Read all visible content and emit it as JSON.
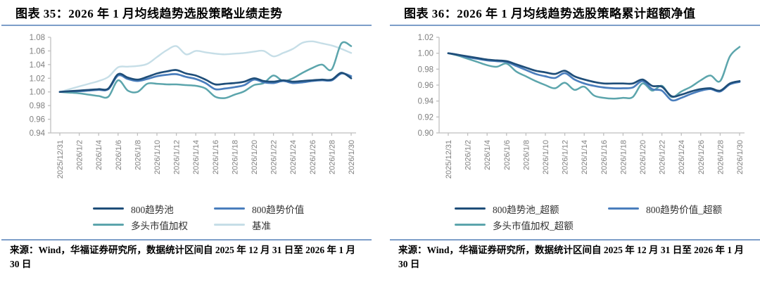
{
  "styles": {
    "rule_color": "#7D9EC9",
    "axis_color": "#BFBFBF",
    "tick_label_color": "#7F7F7F"
  },
  "panels": [
    {
      "title": "图表 35：2026 年 1 月均线趋势选股策略业绩走势",
      "source": "来源：Wind，华福证券研究所，数据统计区间自 2025 年 12 月 31 日至 2026 年 1 月 30 日"
    },
    {
      "title": "图表 36：2026 年 1 月均线趋势选股策略累计超额净值",
      "source": "来源：Wind，华福证券研究所，数据统计区间自 2025 年 12 月 31 日至 2026 年 1 月 30 日"
    }
  ],
  "chart_data": [
    {
      "type": "line",
      "title": "2026年1月均线趋势选股策略业绩走势",
      "x_tick_labels": [
        "2025/12/31",
        "2026/1/2",
        "2026/1/4",
        "2026/1/6",
        "2026/1/8",
        "2026/1/10",
        "2026/1/12",
        "2026/1/14",
        "2026/1/16",
        "2026/1/18",
        "2026/1/20",
        "2026/1/22",
        "2026/1/24",
        "2026/1/26",
        "2026/1/28",
        "2026/1/30"
      ],
      "ylim": [
        0.94,
        1.08
      ],
      "y_ticks": [
        0.94,
        0.96,
        0.98,
        1.0,
        1.02,
        1.04,
        1.06,
        1.08
      ],
      "grid": false,
      "legend_position": "bottom",
      "series": [
        {
          "name": "800趋势池",
          "color": "#1F4E79",
          "width": 2.7,
          "values": [
            1.0,
            1.001,
            1.002,
            1.003,
            1.004,
            1.005,
            1.026,
            1.021,
            1.018,
            1.022,
            1.027,
            1.03,
            1.032,
            1.027,
            1.024,
            1.018,
            1.011,
            1.012,
            1.013,
            1.015,
            1.02,
            1.016,
            1.015,
            1.017,
            1.015,
            1.016,
            1.017,
            1.018,
            1.018,
            1.028,
            1.02
          ]
        },
        {
          "name": "800趋势价值",
          "color": "#4A7EBD",
          "width": 2.7,
          "values": [
            1.0,
            1.001,
            1.001,
            1.002,
            1.003,
            1.004,
            1.024,
            1.019,
            1.016,
            1.019,
            1.023,
            1.025,
            1.026,
            1.022,
            1.019,
            1.013,
            1.004,
            1.005,
            1.007,
            1.01,
            1.018,
            1.014,
            1.013,
            1.016,
            1.013,
            1.014,
            1.016,
            1.017,
            1.017,
            1.027,
            1.023
          ]
        },
        {
          "name": "多头市值加权",
          "color": "#5CA5AC",
          "width": 2.5,
          "values": [
            1.0,
            0.999,
            0.998,
            0.996,
            0.994,
            0.993,
            1.017,
            1.002,
            1.0,
            1.012,
            1.012,
            1.011,
            1.011,
            1.01,
            1.009,
            1.005,
            0.993,
            0.991,
            0.996,
            1.001,
            1.01,
            1.013,
            1.024,
            1.016,
            1.02,
            1.028,
            1.035,
            1.04,
            1.033,
            1.071,
            1.067
          ]
        },
        {
          "name": "基准",
          "color": "#C6DEE7",
          "width": 2.4,
          "values": [
            1.0,
            1.004,
            1.008,
            1.012,
            1.016,
            1.022,
            1.036,
            1.037,
            1.038,
            1.041,
            1.051,
            1.061,
            1.067,
            1.055,
            1.06,
            1.058,
            1.056,
            1.055,
            1.056,
            1.057,
            1.059,
            1.06,
            1.052,
            1.057,
            1.063,
            1.072,
            1.074,
            1.071,
            1.068,
            1.063,
            1.057
          ]
        }
      ]
    },
    {
      "type": "line",
      "title": "2026年1月均线趋势选股策略累计超额净值",
      "x_tick_labels": [
        "2025/12/31",
        "2026/1/2",
        "2026/1/4",
        "2026/1/6",
        "2026/1/8",
        "2026/1/10",
        "2026/1/12",
        "2026/1/14",
        "2026/1/16",
        "2026/1/18",
        "2026/1/20",
        "2026/1/22",
        "2026/1/24",
        "2026/1/26",
        "2026/1/28",
        "2026/1/30"
      ],
      "ylim": [
        0.9,
        1.02
      ],
      "y_ticks": [
        0.9,
        0.92,
        0.94,
        0.96,
        0.98,
        1.0,
        1.02
      ],
      "grid": false,
      "legend_position": "bottom",
      "series": [
        {
          "name": "800趋势池_超额",
          "color": "#1F4E79",
          "width": 2.7,
          "values": [
            1.0,
            0.998,
            0.996,
            0.994,
            0.992,
            0.991,
            0.99,
            0.986,
            0.982,
            0.978,
            0.976,
            0.974,
            0.978,
            0.971,
            0.967,
            0.964,
            0.962,
            0.962,
            0.962,
            0.962,
            0.967,
            0.959,
            0.958,
            0.946,
            0.948,
            0.952,
            0.955,
            0.956,
            0.953,
            0.962,
            0.965
          ]
        },
        {
          "name": "800趋势价值_超额",
          "color": "#4A7EBD",
          "width": 2.7,
          "values": [
            1.0,
            0.998,
            0.995,
            0.993,
            0.991,
            0.99,
            0.989,
            0.984,
            0.979,
            0.974,
            0.971,
            0.969,
            0.975,
            0.967,
            0.962,
            0.959,
            0.957,
            0.956,
            0.956,
            0.957,
            0.965,
            0.955,
            0.953,
            0.941,
            0.944,
            0.949,
            0.953,
            0.955,
            0.952,
            0.961,
            0.964
          ]
        },
        {
          "name": "多头市值加权_超额",
          "color": "#5CA5AC",
          "width": 2.5,
          "values": [
            1.0,
            0.997,
            0.993,
            0.989,
            0.985,
            0.983,
            0.987,
            0.977,
            0.971,
            0.965,
            0.96,
            0.956,
            0.963,
            0.954,
            0.958,
            0.947,
            0.944,
            0.943,
            0.944,
            0.945,
            0.962,
            0.953,
            0.959,
            0.945,
            0.952,
            0.958,
            0.966,
            0.972,
            0.965,
            0.996,
            1.008
          ]
        }
      ]
    }
  ]
}
